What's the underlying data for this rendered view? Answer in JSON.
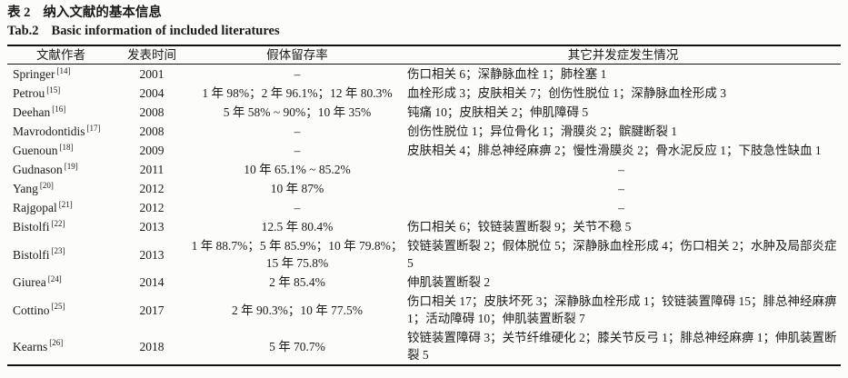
{
  "page": {
    "title_zh_label": "表 2",
    "title_zh_text": "纳入文献的基本信息",
    "title_en_label": "Tab.2",
    "title_en_text": "Basic information of included literatures"
  },
  "table": {
    "columns": [
      "文献作者",
      "发表时间",
      "假体留存率",
      "其它并发症发生情况"
    ],
    "empty_marker": "–",
    "rows": [
      {
        "author": "Springer",
        "ref": "[14]",
        "year": "2001",
        "survival": "–",
        "complications": "伤口相关 6；深静脉血栓 1；肺栓塞 1"
      },
      {
        "author": "Petrou",
        "ref": "[15]",
        "year": "2004",
        "survival": "1 年 98%；2 年 96.1%；12 年 80.3%",
        "complications": "血栓形成 3；皮肤相关 7；创伤性脱位 1；深静脉血栓形成 3"
      },
      {
        "author": "Deehan",
        "ref": "[16]",
        "year": "2008",
        "survival": "5 年 58% ~ 90%；10 年 35%",
        "complications": "钝痛 10；皮肤相关 2；伸肌障碍 5"
      },
      {
        "author": "Mavrodontidis",
        "ref": "[17]",
        "year": "2008",
        "survival": "–",
        "complications": "创伤性脱位 1；异位骨化 1；滑膜炎 2；髌腱断裂 1"
      },
      {
        "author": "Guenoun",
        "ref": "[18]",
        "year": "2009",
        "survival": "–",
        "complications": "皮肤相关 4；腓总神经麻痹 2；慢性滑膜炎 2；骨水泥反应 1；下肢急性缺血 1"
      },
      {
        "author": "Gudnason",
        "ref": "[19]",
        "year": "2011",
        "survival": "10 年 65.1% ~ 85.2%",
        "complications": "–"
      },
      {
        "author": "Yang",
        "ref": "[20]",
        "year": "2012",
        "survival": "10 年 87%",
        "complications": "–"
      },
      {
        "author": "Rajgopal",
        "ref": "[21]",
        "year": "2012",
        "survival": "–",
        "complications": "–"
      },
      {
        "author": "Bistolfi",
        "ref": "[22]",
        "year": "2013",
        "survival": "12.5 年 80.4%",
        "complications": "伤口相关 6；铰链装置断裂 9；关节不稳 5"
      },
      {
        "author": "Bistolfi",
        "ref": "[23]",
        "year": "2013",
        "survival": "1 年 88.7%；5 年 85.9%；10 年 79.8%；\n15 年 75.8%",
        "complications": "铰链装置断裂 2；假体脱位 5；深静脉血栓形成 4；伤口相关 2；水肿及局部炎症 5"
      },
      {
        "author": "Giurea",
        "ref": "[24]",
        "year": "2014",
        "survival": "2 年 85.4%",
        "complications": "伸肌装置断裂 2"
      },
      {
        "author": "Cottino",
        "ref": "[25]",
        "year": "2017",
        "survival": "2 年 90.3%；10 年 77.5%",
        "complications": "伤口相关 17；皮肤坏死 3；深静脉血栓形成 1；铰链装置障碍 15；腓总神经麻痹 1；活动障碍 10；伸肌装置断裂 7"
      },
      {
        "author": "Kearns",
        "ref": "[26]",
        "year": "2018",
        "survival": "5 年 70.7%",
        "complications": "铰链装置障碍 3；关节纤维硬化 2；膝关节反弓 1；腓总神经麻痹 1；伸肌装置断裂 5"
      }
    ]
  }
}
